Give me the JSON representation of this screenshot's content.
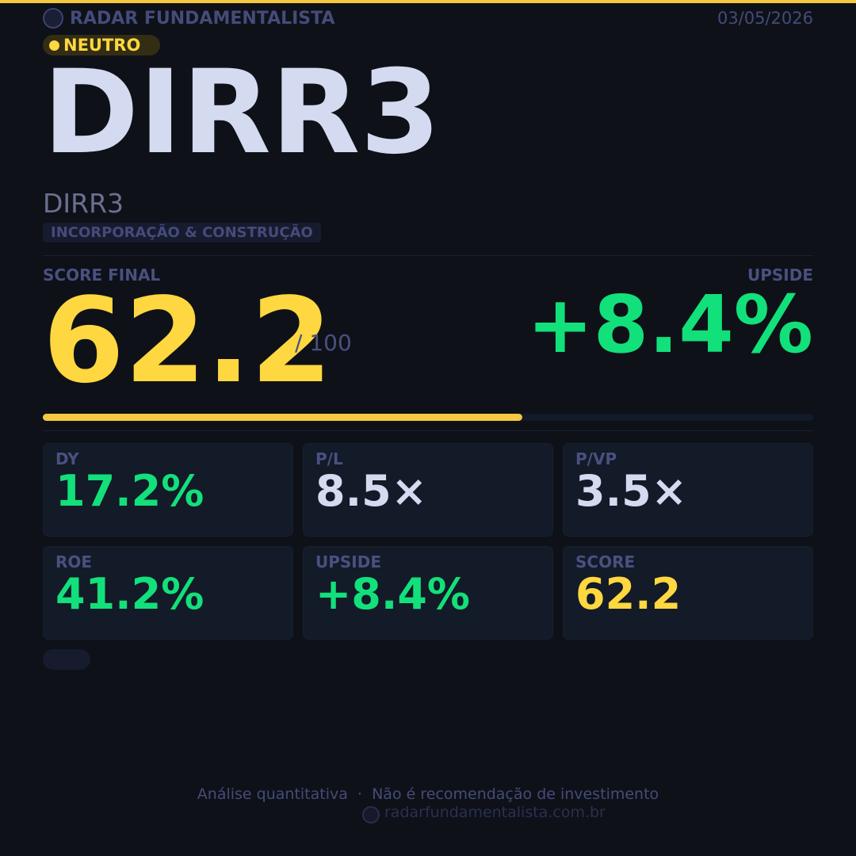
{
  "header": {
    "brand": "RADAR FUNDAMENTALISTA",
    "date": "03/05/2026"
  },
  "badge": "NEUTRO",
  "ticker": "DIRR3",
  "name": "DIRR3",
  "sector": "INCORPORAÇÃO & CONSTRUÇÃO",
  "score": {
    "label": "SCORE FINAL",
    "value": 62.2,
    "max": {
      "value": 100,
      "label": "/ 100"
    }
  },
  "upside": {
    "label": "UPSIDE",
    "value": "+8.4%"
  },
  "metrics": [
    {
      "label": "DY",
      "value": "17.2%",
      "color": "#12e07a"
    },
    {
      "label": "P/L",
      "value": "8.5×",
      "color": "#d4dbf0"
    },
    {
      "label": "P/VP",
      "value": "3.5×",
      "color": "#d4dbf0"
    },
    {
      "label": "ROE",
      "value": "41.2%",
      "color": "#12e07a"
    },
    {
      "label": "UPSIDE",
      "value": "+8.4%",
      "color": "#12e07a"
    },
    {
      "label": "SCORE",
      "value": "62.2",
      "color": "#ffd740"
    }
  ],
  "footer": {
    "disclaimer": "Análise quantitativa  ·  Não é recomendação de investimento",
    "site": "radarfundamentalista.com.br"
  }
}
